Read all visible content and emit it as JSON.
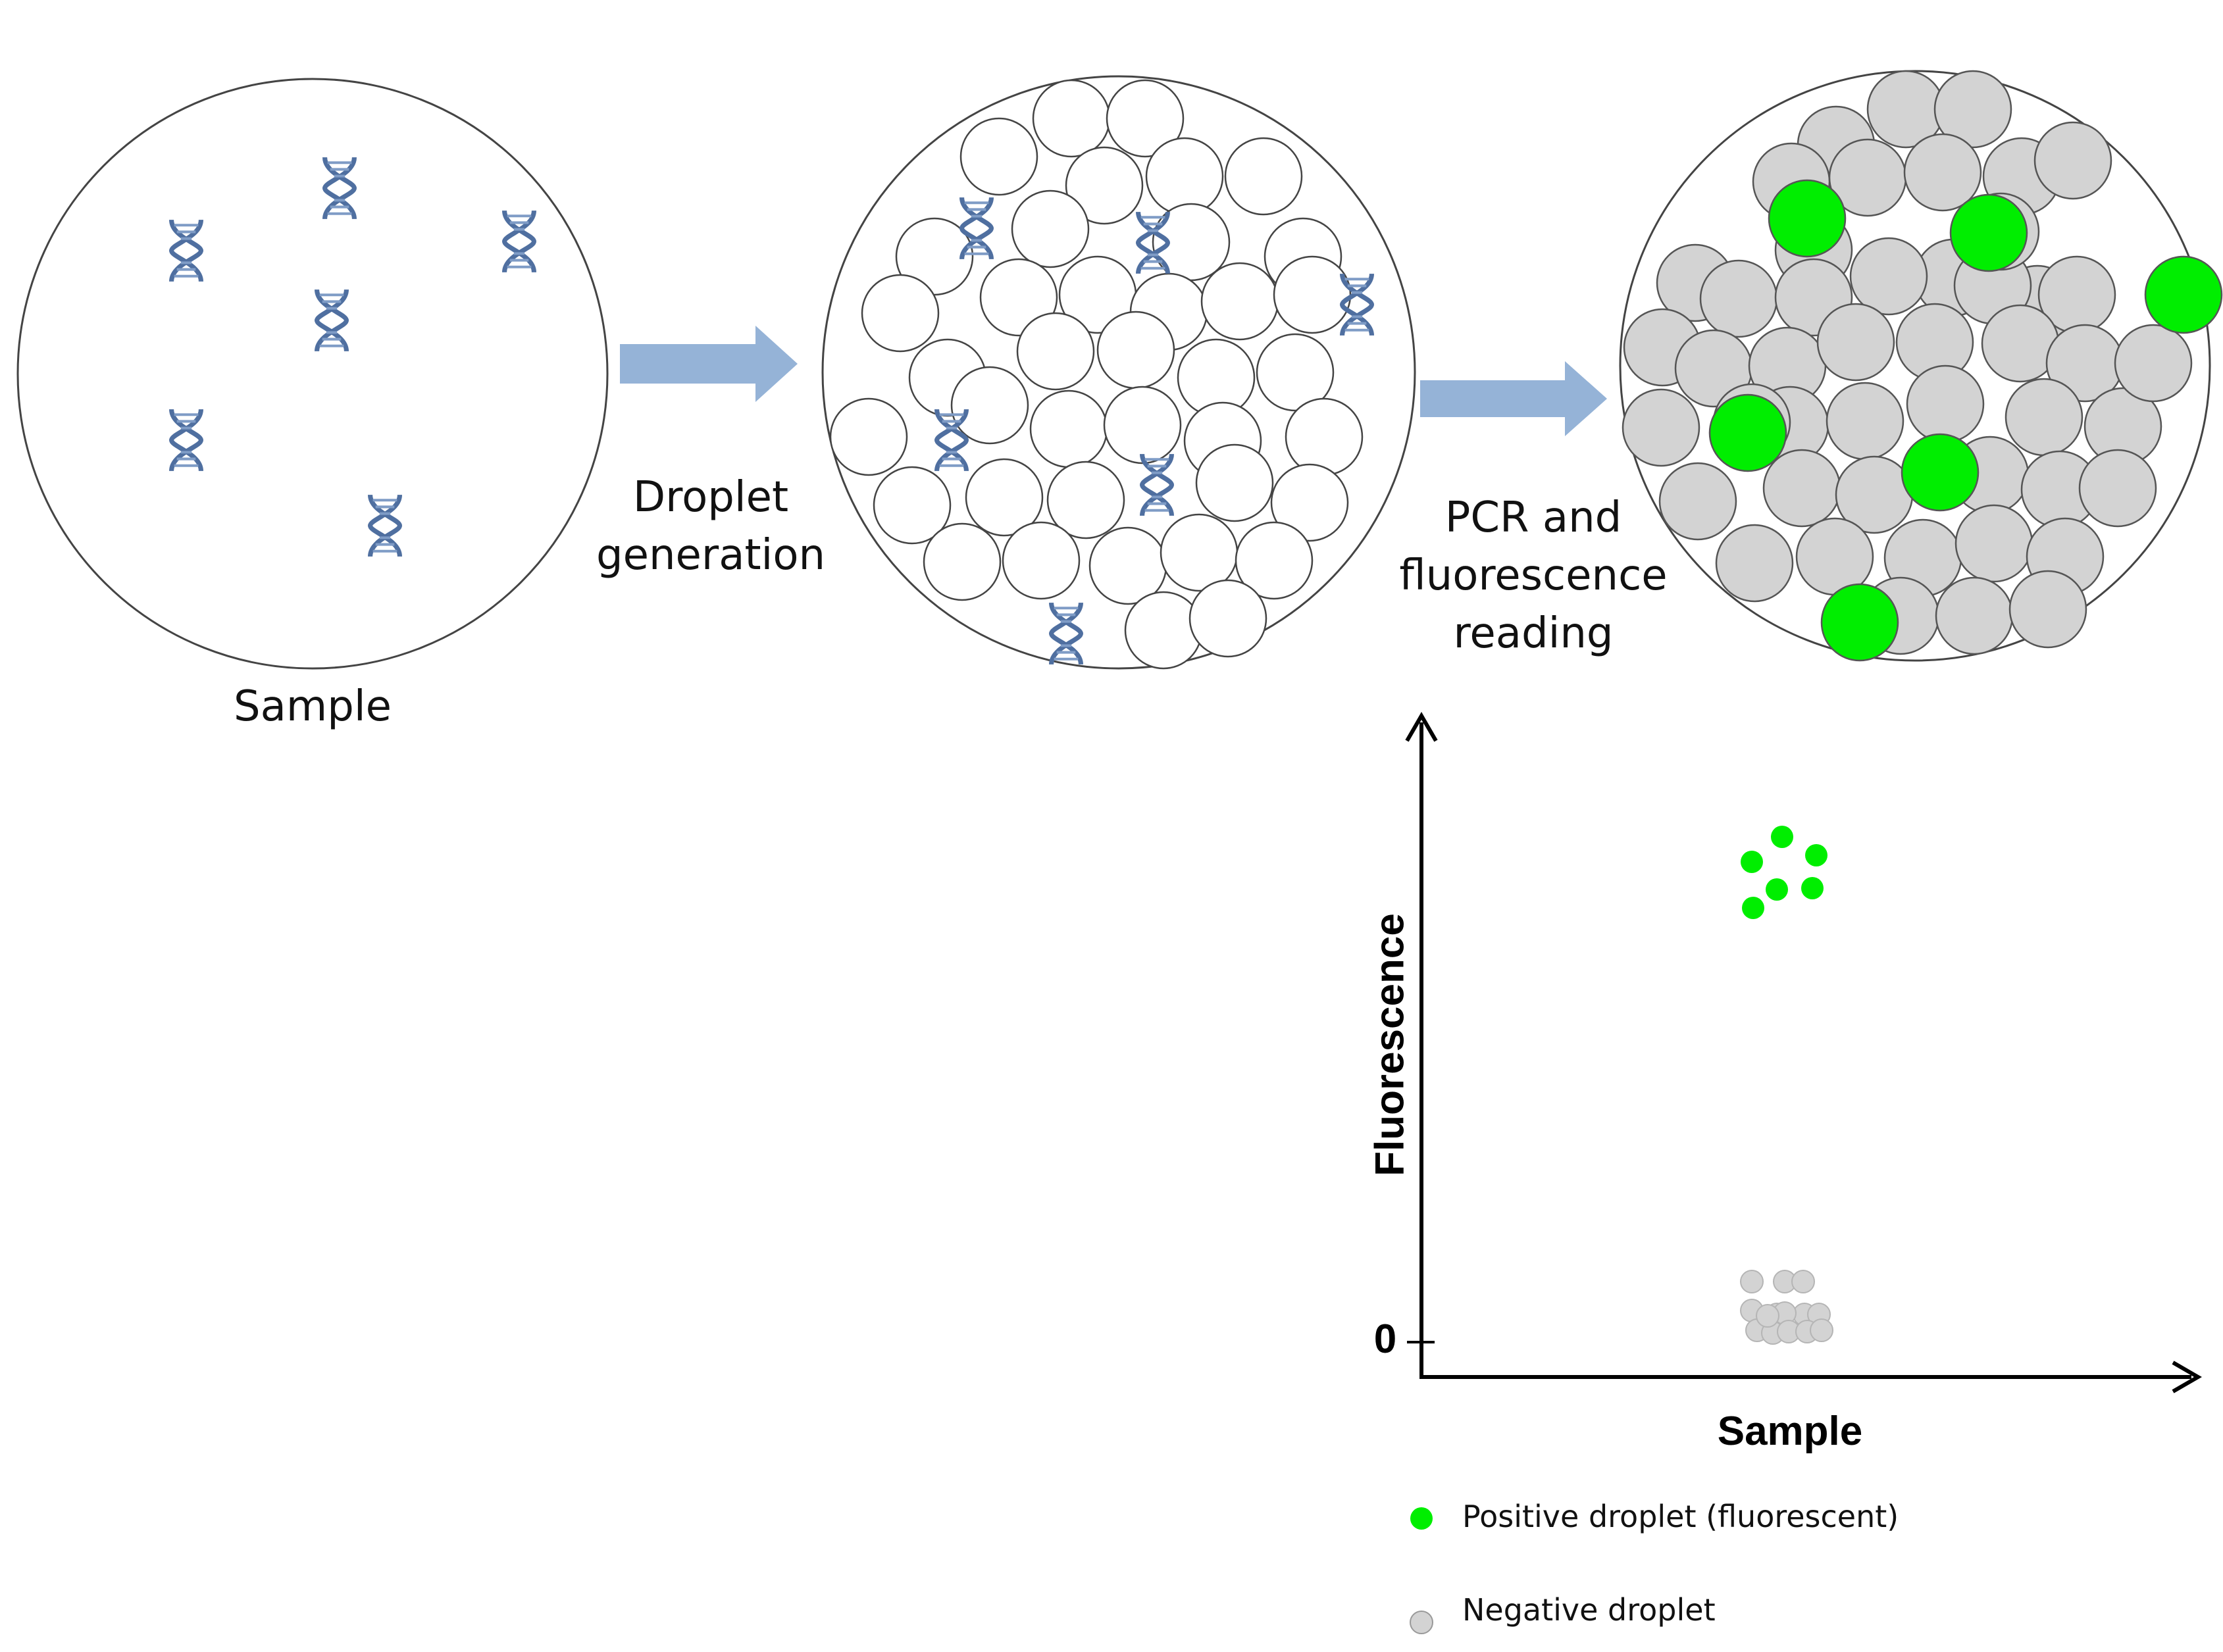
{
  "labels": {
    "sample": "Sample",
    "droplet_generation": [
      "Droplet",
      "generation"
    ],
    "pcr_reading": [
      "PCR and",
      "fluorescence",
      "reading"
    ]
  },
  "plot": {
    "y_label": "Fluorescence",
    "x_label": "Sample",
    "zero_tick": "0"
  },
  "legend": {
    "positive": "Positive droplet (fluorescent)",
    "negative": "Negative droplet"
  },
  "colors": {
    "positive": "#00ee00",
    "negative": "#d3d3d3",
    "arrow": "#95b3d7",
    "dna": "#4f6fa0"
  }
}
